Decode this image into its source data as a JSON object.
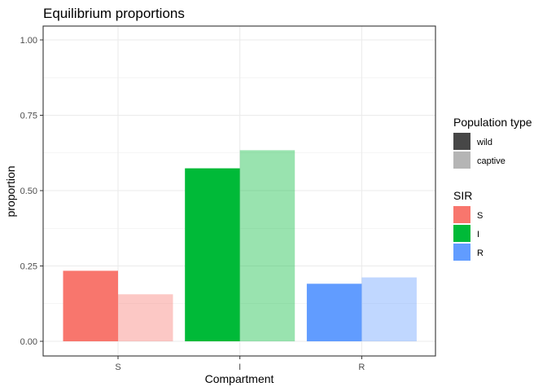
{
  "chart_data": {
    "type": "bar",
    "title": "Equilibrium proportions",
    "xlabel": "Compartment",
    "ylabel": "proportion",
    "categories": [
      "S",
      "I",
      "R"
    ],
    "ylim": [
      0,
      1
    ],
    "yticks": [
      "0.00",
      "0.25",
      "0.50",
      "0.75",
      "1.00"
    ],
    "grid": true,
    "series": [
      {
        "name": "wild",
        "values": [
          0.234,
          0.574,
          0.191
        ]
      },
      {
        "name": "captive",
        "values": [
          0.156,
          0.634,
          0.212
        ]
      }
    ],
    "fill_colors": {
      "S": "#F8766D",
      "I": "#00BA38",
      "R": "#619CFF"
    },
    "legends": [
      {
        "title": "Population type",
        "entries": [
          {
            "label": "wild",
            "color": "#474747"
          },
          {
            "label": "captive",
            "color": "#b5b5b5"
          }
        ]
      },
      {
        "title": "SIR",
        "entries": [
          {
            "label": "S",
            "color": "#F8766D"
          },
          {
            "label": "I",
            "color": "#00BA38"
          },
          {
            "label": "R",
            "color": "#619CFF"
          }
        ]
      }
    ],
    "legend_position": "right"
  }
}
